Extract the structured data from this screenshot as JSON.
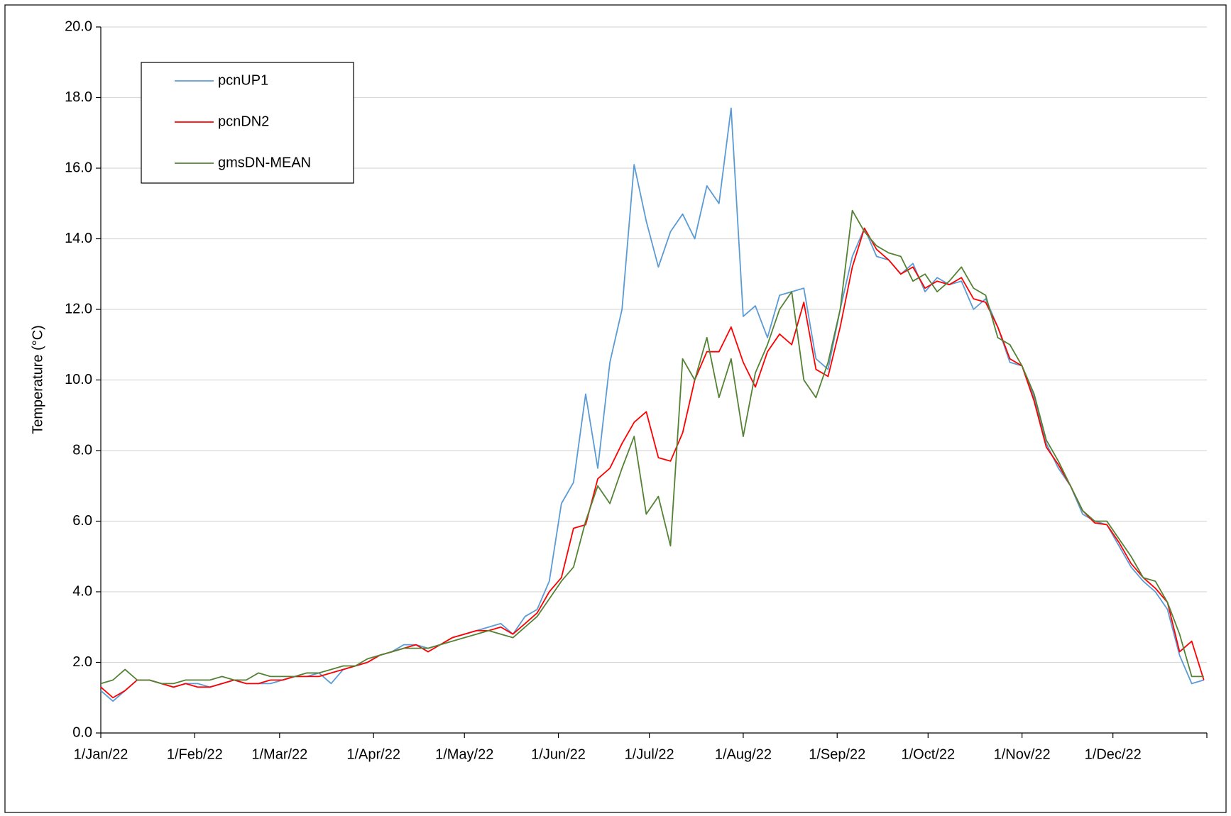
{
  "chart_data": {
    "type": "line",
    "ylabel": "Temperature (°C)",
    "x": [
      0,
      4,
      8,
      12,
      16,
      20,
      24,
      28,
      32,
      36,
      40,
      44,
      48,
      52,
      56,
      60,
      64,
      68,
      72,
      76,
      80,
      84,
      88,
      92,
      96,
      100,
      104,
      108,
      112,
      116,
      120,
      124,
      128,
      132,
      136,
      140,
      144,
      148,
      152,
      156,
      160,
      164,
      168,
      172,
      176,
      180,
      184,
      188,
      192,
      196,
      200,
      204,
      208,
      212,
      216,
      220,
      224,
      228,
      232,
      236,
      240,
      244,
      248,
      252,
      256,
      260,
      264,
      268,
      272,
      276,
      280,
      284,
      288,
      292,
      296,
      300,
      304,
      308,
      312,
      316,
      320,
      324,
      328,
      332,
      336,
      340,
      344,
      348,
      352,
      356,
      360,
      364
    ],
    "xlim": [
      0,
      365
    ],
    "xticks": [
      {
        "value": 0,
        "label": "1/Jan/22"
      },
      {
        "value": 31,
        "label": "1/Feb/22"
      },
      {
        "value": 59,
        "label": "1/Mar/22"
      },
      {
        "value": 90,
        "label": "1/Apr/22"
      },
      {
        "value": 120,
        "label": "1/May/22"
      },
      {
        "value": 151,
        "label": "1/Jun/22"
      },
      {
        "value": 181,
        "label": "1/Jul/22"
      },
      {
        "value": 212,
        "label": "1/Aug/22"
      },
      {
        "value": 243,
        "label": "1/Sep/22"
      },
      {
        "value": 273,
        "label": "1/Oct/22"
      },
      {
        "value": 304,
        "label": "1/Nov/22"
      },
      {
        "value": 334,
        "label": "1/Dec/22"
      }
    ],
    "ylim": [
      0,
      20
    ],
    "yticks": [
      {
        "value": 0,
        "label": "0.0"
      },
      {
        "value": 2,
        "label": "2.0"
      },
      {
        "value": 4,
        "label": "4.0"
      },
      {
        "value": 6,
        "label": "6.0"
      },
      {
        "value": 8,
        "label": "8.0"
      },
      {
        "value": 10,
        "label": "10.0"
      },
      {
        "value": 12,
        "label": "12.0"
      },
      {
        "value": 14,
        "label": "14.0"
      },
      {
        "value": 16,
        "label": "16.0"
      },
      {
        "value": 18,
        "label": "18.0"
      },
      {
        "value": 20,
        "label": "20.0"
      }
    ],
    "grid": true,
    "legend": "upper left",
    "series": [
      {
        "name": "pcnUP1",
        "color": "#5b9bd5",
        "values": [
          1.2,
          0.9,
          1.2,
          1.5,
          1.5,
          1.4,
          1.3,
          1.4,
          1.4,
          1.3,
          1.4,
          1.5,
          1.4,
          1.4,
          1.4,
          1.5,
          1.6,
          1.6,
          1.7,
          1.4,
          1.8,
          1.9,
          2.0,
          2.2,
          2.3,
          2.5,
          2.5,
          2.4,
          2.5,
          2.7,
          2.8,
          2.9,
          3.0,
          3.1,
          2.8,
          3.3,
          3.5,
          4.3,
          6.5,
          7.1,
          9.6,
          7.5,
          10.5,
          12.0,
          16.1,
          14.5,
          13.2,
          14.2,
          14.7,
          14.0,
          15.5,
          15.0,
          17.7,
          11.8,
          12.1,
          11.2,
          12.4,
          12.5,
          12.6,
          10.6,
          10.3,
          12.0,
          13.5,
          14.3,
          13.5,
          13.4,
          13.0,
          13.3,
          12.5,
          12.9,
          12.7,
          12.8,
          12.0,
          12.3,
          11.5,
          10.5,
          10.4,
          9.5,
          8.2,
          7.5,
          7.0,
          6.2,
          6.0,
          5.9,
          5.3,
          4.7,
          4.3,
          4.0,
          3.5,
          2.2,
          1.4,
          1.5
        ]
      },
      {
        "name": "pcnDN2",
        "color": "#ff0000",
        "values": [
          1.3,
          1.0,
          1.2,
          1.5,
          1.5,
          1.4,
          1.3,
          1.4,
          1.3,
          1.3,
          1.4,
          1.5,
          1.4,
          1.4,
          1.5,
          1.5,
          1.6,
          1.6,
          1.6,
          1.7,
          1.8,
          1.9,
          2.0,
          2.2,
          2.3,
          2.4,
          2.5,
          2.3,
          2.5,
          2.7,
          2.8,
          2.9,
          2.9,
          3.0,
          2.8,
          3.1,
          3.4,
          4.0,
          4.4,
          5.8,
          5.9,
          7.2,
          7.5,
          8.2,
          8.8,
          9.1,
          7.8,
          7.7,
          8.5,
          10.0,
          10.8,
          10.8,
          11.5,
          10.5,
          9.8,
          10.8,
          11.3,
          11.0,
          12.2,
          10.3,
          10.1,
          11.5,
          13.2,
          14.3,
          13.7,
          13.4,
          13.0,
          13.2,
          12.6,
          12.8,
          12.7,
          12.9,
          12.3,
          12.2,
          11.5,
          10.6,
          10.4,
          9.4,
          8.1,
          7.6,
          7.0,
          6.3,
          5.95,
          5.9,
          5.4,
          4.8,
          4.4,
          4.1,
          3.7,
          2.3,
          2.6,
          1.5
        ]
      },
      {
        "name": "gmsDN-MEAN",
        "color": "#548235",
        "values": [
          1.4,
          1.5,
          1.8,
          1.5,
          1.5,
          1.4,
          1.4,
          1.5,
          1.5,
          1.5,
          1.6,
          1.5,
          1.5,
          1.7,
          1.6,
          1.6,
          1.6,
          1.7,
          1.7,
          1.8,
          1.9,
          1.9,
          2.1,
          2.2,
          2.3,
          2.4,
          2.4,
          2.4,
          2.5,
          2.6,
          2.7,
          2.8,
          2.9,
          2.8,
          2.7,
          3.0,
          3.3,
          3.8,
          4.3,
          4.7,
          6.0,
          7.0,
          6.5,
          7.5,
          8.4,
          6.2,
          6.7,
          5.3,
          10.6,
          10.0,
          11.2,
          9.5,
          10.6,
          8.4,
          10.2,
          11.0,
          12.0,
          12.5,
          10.0,
          9.5,
          10.5,
          12.0,
          14.8,
          14.2,
          13.8,
          13.6,
          13.5,
          12.8,
          13.0,
          12.5,
          12.8,
          13.2,
          12.6,
          12.4,
          11.2,
          11.0,
          10.4,
          9.6,
          8.3,
          7.7,
          7.0,
          6.3,
          6.0,
          6.0,
          5.5,
          5.0,
          4.4,
          4.3,
          3.7,
          2.8,
          1.6,
          1.6
        ]
      }
    ]
  }
}
